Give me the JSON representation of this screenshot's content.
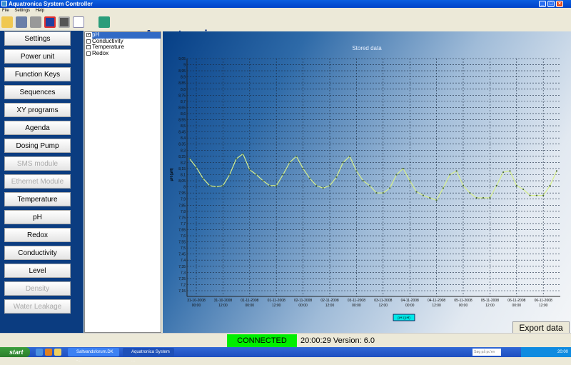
{
  "window": {
    "title": "Aquatronica System Controller",
    "minimize": "_",
    "maximize": "□",
    "close": "×"
  },
  "menu": [
    "File",
    "Settings",
    "Help"
  ],
  "toolbar": {
    "icons": [
      "open-icon",
      "pump-icon",
      "device-icon",
      "disconnect-icon",
      "monitor-icon",
      "chart-icon",
      "exit-icon"
    ],
    "logo": "Aquatronica"
  },
  "sidebar": [
    {
      "label": "Settings",
      "enabled": true
    },
    {
      "label": "Power unit",
      "enabled": true
    },
    {
      "label": "Function Keys",
      "enabled": true
    },
    {
      "label": "Sequences",
      "enabled": true
    },
    {
      "label": "XY programs",
      "enabled": true
    },
    {
      "label": "Agenda",
      "enabled": true
    },
    {
      "label": "Dosing Pump",
      "enabled": true
    },
    {
      "label": "SMS module",
      "enabled": false
    },
    {
      "label": "Ethernet Module",
      "enabled": false
    },
    {
      "label": "Temperature",
      "enabled": true
    },
    {
      "label": "pH",
      "enabled": true
    },
    {
      "label": "Redox",
      "enabled": true
    },
    {
      "label": "Conductivity",
      "enabled": true
    },
    {
      "label": "Level",
      "enabled": true
    },
    {
      "label": "Density",
      "enabled": false
    },
    {
      "label": "Water Leakage",
      "enabled": false
    }
  ],
  "checklist": [
    {
      "label": "pH",
      "checked": true,
      "selected": true
    },
    {
      "label": "Conductivity",
      "checked": false
    },
    {
      "label": "Temperature",
      "checked": false
    },
    {
      "label": "Redox",
      "checked": false
    }
  ],
  "chart_data": {
    "type": "line",
    "title": "Stored data",
    "ylabel": "pH (pH)",
    "ylim": [
      7.15,
      9.05
    ],
    "ystep": 0.05,
    "grid": true,
    "legend": {
      "position": "bottom",
      "entries": [
        "pH (pH)"
      ]
    },
    "series_color": "#d8f08a",
    "xticks": [
      "31-10-2008 00:00",
      "31-10-2008 12:00",
      "01-11-2008 00:00",
      "01-11-2008 12:00",
      "02-11-2008 00:00",
      "02-11-2008 12:00",
      "03-11-2008 00:00",
      "03-11-2008 12:00",
      "04-11-2008 00:00",
      "04-11-2008 12:00",
      "05-11-2008 00:00",
      "05-11-2008 12:00",
      "06-11-2008 00:00",
      "06-11-2008 12:00"
    ],
    "series": [
      {
        "name": "pH (pH)",
        "x": [
          "30-10-2008 21:00",
          "31-10-2008 00:00",
          "31-10-2008 03:00",
          "31-10-2008 06:00",
          "31-10-2008 09:00",
          "31-10-2008 12:00",
          "31-10-2008 15:00",
          "31-10-2008 18:00",
          "31-10-2008 21:00",
          "01-11-2008 00:00",
          "01-11-2008 03:00",
          "01-11-2008 06:00",
          "01-11-2008 09:00",
          "01-11-2008 12:00",
          "01-11-2008 15:00",
          "01-11-2008 18:00",
          "01-11-2008 21:00",
          "02-11-2008 00:00",
          "02-11-2008 03:00",
          "02-11-2008 06:00",
          "02-11-2008 09:00",
          "02-11-2008 12:00",
          "02-11-2008 15:00",
          "02-11-2008 18:00",
          "02-11-2008 21:00",
          "03-11-2008 00:00",
          "03-11-2008 03:00",
          "03-11-2008 06:00",
          "03-11-2008 09:00",
          "03-11-2008 12:00",
          "03-11-2008 15:00",
          "03-11-2008 18:00",
          "03-11-2008 21:00",
          "04-11-2008 00:00",
          "04-11-2008 03:00",
          "04-11-2008 06:00",
          "04-11-2008 09:00",
          "04-11-2008 12:00",
          "04-11-2008 15:00",
          "04-11-2008 18:00",
          "04-11-2008 21:00",
          "05-11-2008 00:00",
          "05-11-2008 03:00",
          "05-11-2008 06:00",
          "05-11-2008 09:00",
          "05-11-2008 12:00",
          "05-11-2008 15:00",
          "05-11-2008 18:00",
          "05-11-2008 21:00",
          "06-11-2008 00:00",
          "06-11-2008 03:00",
          "06-11-2008 06:00",
          "06-11-2008 09:00",
          "06-11-2008 12:00",
          "06-11-2008 15:00",
          "06-11-2008 18:00"
        ],
        "y": [
          8.23,
          8.16,
          8.07,
          8.01,
          8.0,
          8.01,
          8.1,
          8.23,
          8.27,
          8.14,
          8.1,
          8.05,
          8.01,
          8.01,
          8.1,
          8.2,
          8.25,
          8.15,
          8.07,
          8.01,
          7.99,
          8.01,
          8.08,
          8.2,
          8.25,
          8.13,
          8.05,
          8.01,
          7.95,
          7.95,
          7.99,
          8.1,
          8.15,
          8.05,
          7.96,
          7.93,
          7.91,
          7.89,
          7.99,
          8.1,
          8.13,
          8.01,
          7.95,
          7.91,
          7.91,
          7.91,
          8.01,
          8.12,
          8.13,
          8.01,
          7.98,
          7.93,
          7.93,
          7.93,
          8.01,
          8.13
        ]
      }
    ]
  },
  "export_label": "Export data",
  "status": {
    "connection": "CONNECTED",
    "connection_color": "#00ee00",
    "time": "20:00:29",
    "version": "Version: 6.0"
  },
  "taskbar": {
    "start": "start",
    "tasks": [
      "Saltvandsforum.DK -...",
      "Aquatronica System ..."
    ],
    "search_placeholder": "Søg på pc'en",
    "clock": "20:00"
  }
}
